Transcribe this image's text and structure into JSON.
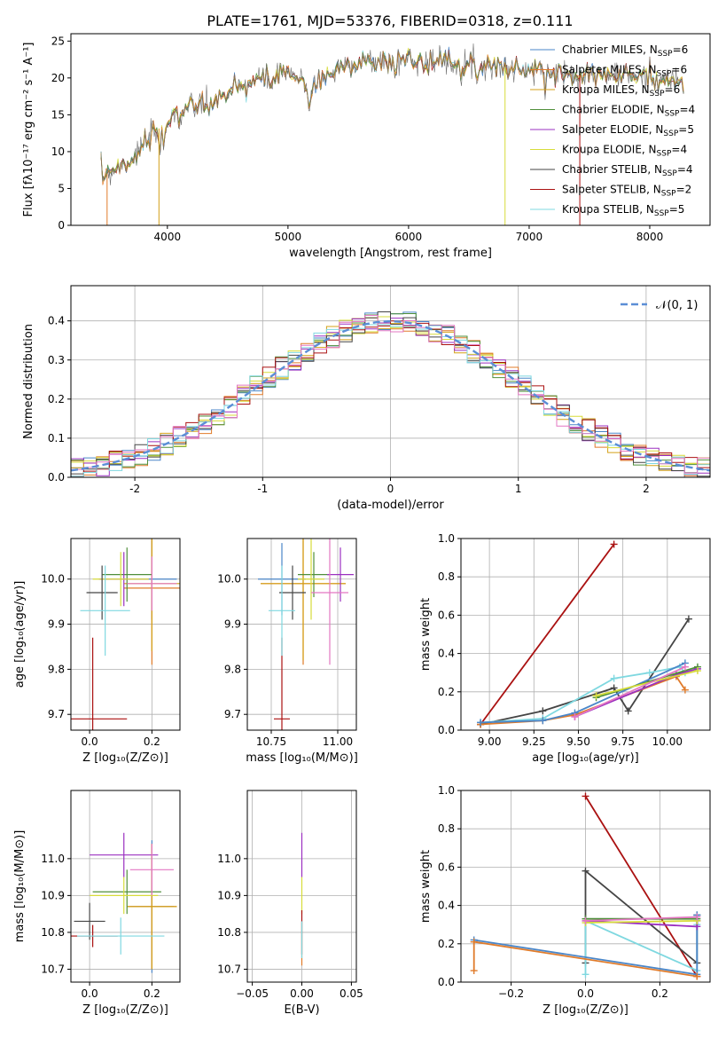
{
  "title": "PLATE=1761, MJD=53376, FIBERID=0318, z=0.111",
  "palette": {
    "Chabrier MILES": "#4a86c8",
    "Salpeter MILES": "#e07b2a",
    "Kroupa MILES": "#d4a017",
    "Chabrier ELODIE": "#4f8f3a",
    "Salpeter ELODIE": "#9b30c0",
    "Kroupa ELODIE": "#d7dc3a",
    "Chabrier STELIB": "#454545",
    "Salpeter STELIB": "#aa1111",
    "Kroupa STELIB": "#7fd8e0",
    "pink": "#e377c2",
    "gaussian": "#5b8ed6"
  },
  "chart_data": [
    {
      "id": "spectrum",
      "type": "line",
      "xlabel": "wavelength [Angstrom, rest frame]",
      "ylabel": "Flux [fλ10⁻¹⁷ erg cm⁻² s⁻¹ A⁻¹]",
      "xlim": [
        3200,
        8500
      ],
      "ylim": [
        0,
        26
      ],
      "xticks": [
        4000,
        5000,
        6000,
        7000,
        8000
      ],
      "yticks": [
        0,
        5,
        10,
        15,
        20,
        25
      ],
      "grid": false,
      "legend_position": "right",
      "continuum": [
        [
          3450,
          6.5
        ],
        [
          3700,
          9
        ],
        [
          3950,
          13.5
        ],
        [
          4100,
          15.5
        ],
        [
          4400,
          17
        ],
        [
          4700,
          19.5
        ],
        [
          5000,
          20.5
        ],
        [
          5200,
          19
        ],
        [
          5500,
          22
        ],
        [
          6000,
          22.5
        ],
        [
          6500,
          22
        ],
        [
          7000,
          21
        ],
        [
          7500,
          20.5
        ],
        [
          8000,
          20
        ],
        [
          8280,
          19.5
        ]
      ],
      "series": [
        {
          "name": "Chabrier MILES, N",
          "sub": "SSP",
          "suffix": "=6"
        },
        {
          "name": "Salpeter MILES, N",
          "sub": "SSP",
          "suffix": "=6"
        },
        {
          "name": "Kroupa MILES, N",
          "sub": "SSP",
          "suffix": "=6"
        },
        {
          "name": "Chabrier ELODIE, N",
          "sub": "SSP",
          "suffix": "=4"
        },
        {
          "name": "Salpeter ELODIE, N",
          "sub": "SSP",
          "suffix": "=5"
        },
        {
          "name": "Kroupa ELODIE, N",
          "sub": "SSP",
          "suffix": "=4"
        },
        {
          "name": "Chabrier STELIB, N",
          "sub": "SSP",
          "suffix": "=4"
        },
        {
          "name": "Salpeter STELIB, N",
          "sub": "SSP",
          "suffix": "=2"
        },
        {
          "name": "Kroupa STELIB, N",
          "sub": "SSP",
          "suffix": "=5"
        }
      ]
    },
    {
      "id": "residuals",
      "type": "line",
      "xlabel": "(data-model)/error",
      "ylabel": "Normed distribution",
      "xlim": [
        -2.5,
        2.5
      ],
      "ylim": [
        0,
        0.49
      ],
      "xticks": [
        -2,
        -1,
        0,
        1,
        2
      ],
      "yticks": [
        0.0,
        0.1,
        0.2,
        0.3,
        0.4
      ],
      "grid": true,
      "legend_position": "top-right",
      "gaussian_label": "𝒩(0, 1)",
      "bin_width": 0.1
    },
    {
      "id": "age_vs_Z",
      "type": "scatter",
      "xlabel": "Z [log₁₀(Z/Z⊙)]",
      "ylabel": "age  [log₁₀(age/yr)]",
      "xlim": [
        -0.06,
        0.29
      ],
      "ylim": [
        9.665,
        10.09
      ],
      "xticks": [
        0.0,
        0.2
      ],
      "yticks": [
        9.7,
        9.8,
        9.9,
        10.0
      ],
      "grid": true,
      "points": [
        {
          "c": "Chabrier MILES",
          "x": 0.2,
          "y": 10.0,
          "xe": 0.08,
          "ye": 0.09
        },
        {
          "c": "Salpeter MILES",
          "x": 0.2,
          "y": 9.98,
          "xe": 0.09,
          "ye": 0.17
        },
        {
          "c": "Kroupa MILES",
          "x": 0.2,
          "y": 9.99,
          "xe": 0.09,
          "ye": 0.15
        },
        {
          "c": "Chabrier ELODIE",
          "x": 0.12,
          "y": 10.01,
          "xe": 0.08,
          "ye": 0.06
        },
        {
          "c": "Salpeter ELODIE",
          "x": 0.11,
          "y": 10.0,
          "xe": 0.08,
          "ye": 0.06
        },
        {
          "c": "Kroupa ELODIE",
          "x": 0.1,
          "y": 10.0,
          "xe": 0.09,
          "ye": 0.06
        },
        {
          "c": "Chabrier STELIB",
          "x": 0.04,
          "y": 9.97,
          "xe": 0.05,
          "ye": 0.06
        },
        {
          "c": "Salpeter STELIB",
          "x": 0.01,
          "y": 9.69,
          "xe": 0.11,
          "ye": 0.18
        },
        {
          "c": "Kroupa STELIB",
          "x": 0.05,
          "y": 9.93,
          "xe": 0.08,
          "ye": 0.1
        },
        {
          "c": "pink",
          "x": 0.2,
          "y": 9.99,
          "xe": 0.08,
          "ye": 0.06
        }
      ]
    },
    {
      "id": "age_vs_mass",
      "type": "scatter",
      "xlabel": "mass [log₁₀(M/M⊙)]",
      "ylabel": "",
      "xlim": [
        10.66,
        11.07
      ],
      "ylim": [
        9.665,
        10.09
      ],
      "xticks": [
        10.75,
        11.0
      ],
      "yticks": [
        9.7,
        9.8,
        9.9,
        10.0
      ],
      "grid": true,
      "points": [
        {
          "c": "Chabrier MILES",
          "x": 10.79,
          "y": 10.0,
          "xe": 0.09,
          "ye": 0.08
        },
        {
          "c": "Salpeter MILES",
          "x": 10.87,
          "y": 9.99,
          "xe": 0.16,
          "ye": 0.18
        },
        {
          "c": "Kroupa MILES",
          "x": 10.87,
          "y": 9.99,
          "xe": 0.16,
          "ye": 0.17
        },
        {
          "c": "Chabrier ELODIE",
          "x": 10.91,
          "y": 10.01,
          "xe": 0.06,
          "ye": 0.05
        },
        {
          "c": "Salpeter ELODIE",
          "x": 11.01,
          "y": 10.01,
          "xe": 0.05,
          "ye": 0.06
        },
        {
          "c": "Kroupa ELODIE",
          "x": 10.9,
          "y": 10.0,
          "xe": 0.05,
          "ye": 0.09
        },
        {
          "c": "Chabrier STELIB",
          "x": 10.83,
          "y": 9.97,
          "xe": 0.05,
          "ye": 0.06
        },
        {
          "c": "Salpeter STELIB",
          "x": 10.79,
          "y": 9.69,
          "xe": 0.03,
          "ye": 0.18
        },
        {
          "c": "Kroupa STELIB",
          "x": 10.79,
          "y": 9.93,
          "xe": 0.05,
          "ye": 0.1
        },
        {
          "c": "pink",
          "x": 10.97,
          "y": 9.97,
          "xe": 0.07,
          "ye": 0.16
        }
      ]
    },
    {
      "id": "weight_vs_age",
      "type": "line",
      "xlabel": "age  [log₁₀(age/yr)]",
      "ylabel": "mass weight",
      "xlim": [
        8.84,
        10.24
      ],
      "ylim": [
        0,
        1.0
      ],
      "xticks": [
        9.0,
        9.25,
        9.5,
        9.75,
        10.0
      ],
      "ytick_labels": [
        "0.0",
        "0.2",
        "0.4",
        "0.6",
        "0.8",
        "1.0"
      ],
      "xtick_labels": [
        "9.00",
        "9.25",
        "9.50",
        "9.75",
        "10.00"
      ],
      "grid": true,
      "series": [
        {
          "c": "Salpeter STELIB",
          "x": [
            8.95,
            9.7
          ],
          "y": [
            0.03,
            0.97
          ]
        },
        {
          "c": "Chabrier STELIB",
          "x": [
            8.95,
            9.3,
            9.7,
            9.78,
            10.12
          ],
          "y": [
            0.03,
            0.1,
            0.22,
            0.1,
            0.58
          ]
        },
        {
          "c": "Kroupa STELIB",
          "x": [
            8.95,
            9.3,
            9.7,
            9.9,
            10.07,
            10.1
          ],
          "y": [
            0.04,
            0.06,
            0.27,
            0.3,
            0.33,
            0.3
          ]
        },
        {
          "c": "Salpeter MILES",
          "x": [
            8.95,
            9.3,
            9.48,
            10.05,
            10.1
          ],
          "y": [
            0.03,
            0.05,
            0.08,
            0.28,
            0.21
          ]
        },
        {
          "c": "Chabrier MILES",
          "x": [
            8.95,
            9.3,
            9.48,
            10.1
          ],
          "y": [
            0.04,
            0.05,
            0.09,
            0.35
          ]
        },
        {
          "c": "Salpeter ELODIE",
          "x": [
            9.48,
            10.05,
            10.17
          ],
          "y": [
            0.07,
            0.29,
            0.32
          ]
        },
        {
          "c": "Chabrier ELODIE",
          "x": [
            9.6,
            10.17
          ],
          "y": [
            0.17,
            0.33
          ]
        },
        {
          "c": "Kroupa ELODIE",
          "x": [
            9.6,
            10.17
          ],
          "y": [
            0.18,
            0.31
          ]
        },
        {
          "c": "pink",
          "x": [
            9.48,
            10.1
          ],
          "y": [
            0.07,
            0.33
          ]
        }
      ]
    },
    {
      "id": "mass_vs_Z",
      "type": "scatter",
      "xlabel": "Z [log₁₀(Z/Z⊙)]",
      "ylabel": "mass [log₁₀(M/M⊙)]",
      "xlim": [
        -0.06,
        0.29
      ],
      "ylim": [
        10.665,
        11.185
      ],
      "xticks": [
        0.0,
        0.2
      ],
      "yticks": [
        10.7,
        10.8,
        10.9,
        11.0
      ],
      "grid": true,
      "points": [
        {
          "c": "Chabrier MILES",
          "x": 0.2,
          "y": 10.87,
          "xe": 0.07,
          "ye": 0.18
        },
        {
          "c": "Salpeter MILES",
          "x": 0.2,
          "y": 10.87,
          "xe": 0.08,
          "ye": 0.17
        },
        {
          "c": "Kroupa MILES",
          "x": 0.2,
          "y": 10.87,
          "xe": 0.08,
          "ye": 0.17
        },
        {
          "c": "Chabrier ELODIE",
          "x": 0.12,
          "y": 10.91,
          "xe": 0.11,
          "ye": 0.06
        },
        {
          "c": "Salpeter ELODIE",
          "x": 0.11,
          "y": 11.01,
          "xe": 0.11,
          "ye": 0.06
        },
        {
          "c": "Kroupa ELODIE",
          "x": 0.11,
          "y": 10.9,
          "xe": 0.11,
          "ye": 0.05
        },
        {
          "c": "Chabrier STELIB",
          "x": 0.0,
          "y": 10.83,
          "xe": 0.05,
          "ye": 0.05
        },
        {
          "c": "Salpeter STELIB",
          "x": 0.01,
          "y": 10.79,
          "xe": 0.08,
          "ye": 0.03
        },
        {
          "c": "Kroupa STELIB",
          "x": 0.1,
          "y": 10.79,
          "xe": 0.14,
          "ye": 0.05
        },
        {
          "c": "pink",
          "x": 0.2,
          "y": 10.97,
          "xe": 0.07,
          "ye": 0.07
        }
      ]
    },
    {
      "id": "mass_vs_ebv",
      "type": "scatter",
      "xlabel": "E(B-V)",
      "ylabel": "",
      "xlim": [
        -0.055,
        0.055
      ],
      "ylim": [
        10.665,
        11.185
      ],
      "xticks": [
        -0.05,
        0.0,
        0.05
      ],
      "xtick_labels": [
        "−0.05",
        "0.00",
        "0.05"
      ],
      "yticks": [
        10.7,
        10.8,
        10.9,
        11.0
      ],
      "grid": true,
      "points": [
        {
          "c": "Salpeter ELODIE",
          "x": 0.0,
          "y": 11.01,
          "xe": 0.0,
          "ye": 0.06
        },
        {
          "c": "Kroupa ELODIE",
          "x": 0.0,
          "y": 10.9,
          "xe": 0.0,
          "ye": 0.05
        },
        {
          "c": "Salpeter STELIB",
          "x": 0.0,
          "y": 10.8,
          "xe": 0.0,
          "ye": 0.06
        },
        {
          "c": "Salpeter MILES",
          "x": 0.0,
          "y": 10.77,
          "xe": 0.0,
          "ye": 0.06
        },
        {
          "c": "Kroupa STELIB",
          "x": 0.0,
          "y": 10.78,
          "xe": 0.0,
          "ye": 0.05
        }
      ]
    },
    {
      "id": "weight_vs_Z",
      "type": "line",
      "xlabel": "Z [log₁₀(Z/Z⊙)]",
      "ylabel": "mass weight",
      "xlim": [
        -0.335,
        0.335
      ],
      "ylim": [
        0,
        1.0
      ],
      "xticks": [
        -0.2,
        0.0,
        0.2
      ],
      "xtick_labels": [
        "−0.2",
        "0.0",
        "0.2"
      ],
      "ytick_labels": [
        "0.0",
        "0.2",
        "0.4",
        "0.6",
        "0.8",
        "1.0"
      ],
      "grid": true,
      "series": [
        {
          "c": "Salpeter STELIB",
          "x": [
            0.0,
            0.3
          ],
          "y": [
            0.97,
            0.03
          ]
        },
        {
          "c": "Chabrier STELIB",
          "x": [
            0.0,
            0.0,
            0.3,
            0.3
          ],
          "y": [
            0.1,
            0.58,
            0.1,
            0.35
          ]
        },
        {
          "c": "Kroupa STELIB",
          "x": [
            0.0,
            0.0,
            0.3,
            0.3
          ],
          "y": [
            0.04,
            0.32,
            0.06,
            0.3
          ]
        },
        {
          "c": "Chabrier MILES",
          "x": [
            -0.3,
            0.3,
            0.3
          ],
          "y": [
            0.22,
            0.04,
            0.35
          ]
        },
        {
          "c": "Salpeter MILES",
          "x": [
            -0.3,
            -0.3,
            0.3
          ],
          "y": [
            0.06,
            0.21,
            0.03
          ]
        },
        {
          "c": "Salpeter ELODIE",
          "x": [
            0.0,
            0.3,
            0.3
          ],
          "y": [
            0.32,
            0.29,
            0.32
          ]
        },
        {
          "c": "Chabrier ELODIE",
          "x": [
            0.0,
            0.3
          ],
          "y": [
            0.33,
            0.33
          ]
        },
        {
          "c": "Kroupa ELODIE",
          "x": [
            0.0,
            0.3
          ],
          "y": [
            0.31,
            0.32
          ]
        },
        {
          "c": "pink",
          "x": [
            0.0,
            0.3
          ],
          "y": [
            0.32,
            0.34
          ]
        }
      ]
    }
  ]
}
